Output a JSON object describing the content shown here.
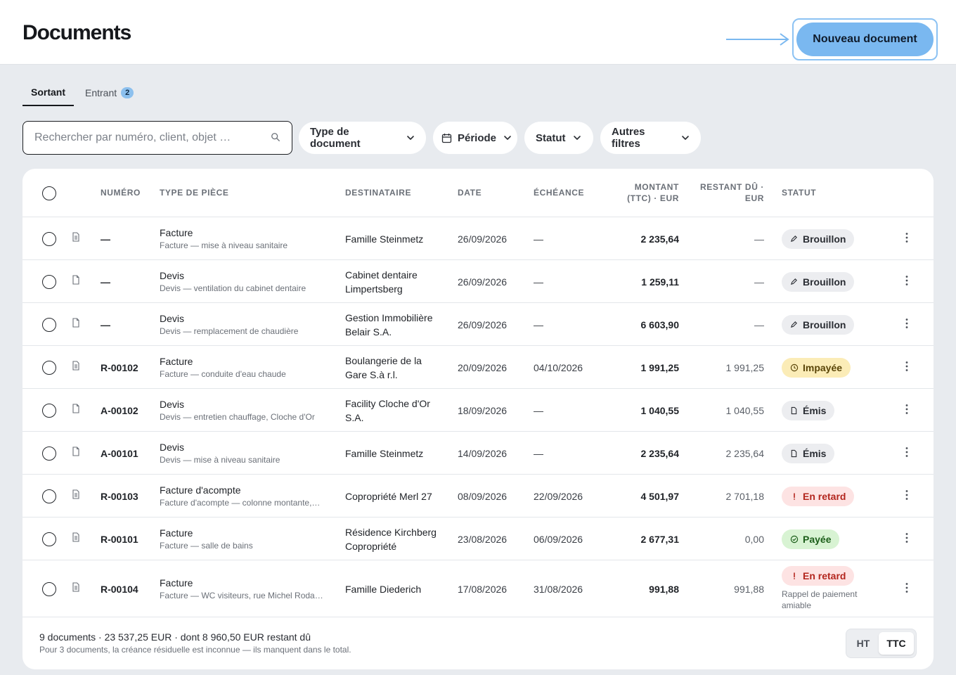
{
  "header": {
    "title": "Documents",
    "new_button": "Nouveau document"
  },
  "tabs": [
    {
      "label": "Sortant",
      "active": true
    },
    {
      "label": "Entrant",
      "badge": "2",
      "active": false
    }
  ],
  "search": {
    "placeholder": "Rechercher par numéro, client, objet …",
    "value": ""
  },
  "filters": {
    "type": "Type de document",
    "period": "Période",
    "status": "Statut",
    "other": "Autres filtres"
  },
  "table": {
    "columns": {
      "number": "NUMÉRO",
      "type": "TYPE DE PIÈCE",
      "recipient": "DESTINATAIRE",
      "date": "DATE",
      "due": "ÉCHÉANCE",
      "amount_l1": "MONTANT",
      "amount_l2": "(TTC) · EUR",
      "rest_l1": "RESTANT DÛ ·",
      "rest_l2": "EUR",
      "status": "STATUT"
    },
    "rows": [
      {
        "icon": "invoice-icon",
        "number": "—",
        "type": "Facture",
        "subject": "Facture — mise à niveau sanitaire",
        "recipient_1": "Famille Steinmetz",
        "recipient_2": "",
        "date": "26/09/2026",
        "due": "—",
        "amount": "2 235,64",
        "rest": "—",
        "status": "Brouillon",
        "status_kind": "draft",
        "status_note": ""
      },
      {
        "icon": "quote-icon",
        "number": "—",
        "type": "Devis",
        "subject": "Devis — ventilation du cabinet dentaire",
        "recipient_1": "Cabinet dentaire",
        "recipient_2": "Limpertsberg",
        "date": "26/09/2026",
        "due": "—",
        "amount": "1 259,11",
        "rest": "—",
        "status": "Brouillon",
        "status_kind": "draft",
        "status_note": ""
      },
      {
        "icon": "quote-icon",
        "number": "—",
        "type": "Devis",
        "subject": "Devis — remplacement de chaudière",
        "recipient_1": "Gestion Immobilière",
        "recipient_2": "Belair S.A.",
        "date": "26/09/2026",
        "due": "—",
        "amount": "6 603,90",
        "rest": "—",
        "status": "Brouillon",
        "status_kind": "draft",
        "status_note": ""
      },
      {
        "icon": "invoice-icon",
        "number": "R-00102",
        "type": "Facture",
        "subject": "Facture — conduite d'eau chaude",
        "recipient_1": "Boulangerie de la",
        "recipient_2": "Gare S.à r.l.",
        "date": "20/09/2026",
        "due": "04/10/2026",
        "amount": "1 991,25",
        "rest": "1 991,25",
        "status": "Impayée",
        "status_kind": "unpaid",
        "status_note": ""
      },
      {
        "icon": "quote-icon",
        "number": "A-00102",
        "type": "Devis",
        "subject": "Devis — entretien chauffage, Cloche d'Or",
        "recipient_1": "Facility Cloche d'Or",
        "recipient_2": "S.A.",
        "date": "18/09/2026",
        "due": "—",
        "amount": "1 040,55",
        "rest": "1 040,55",
        "status": "Émis",
        "status_kind": "issued",
        "status_note": ""
      },
      {
        "icon": "quote-icon",
        "number": "A-00101",
        "type": "Devis",
        "subject": "Devis — mise à niveau sanitaire",
        "recipient_1": "Famille Steinmetz",
        "recipient_2": "",
        "date": "14/09/2026",
        "due": "—",
        "amount": "2 235,64",
        "rest": "2 235,64",
        "status": "Émis",
        "status_kind": "issued",
        "status_note": ""
      },
      {
        "icon": "invoice-icon",
        "number": "R-00103",
        "type": "Facture d'acompte",
        "subject": "Facture d'acompte — colonne montante,…",
        "recipient_1": "Copropriété Merl 27",
        "recipient_2": "",
        "date": "08/09/2026",
        "due": "22/09/2026",
        "amount": "4 501,97",
        "rest": "2 701,18",
        "status": "En retard",
        "status_kind": "late",
        "status_note": ""
      },
      {
        "icon": "invoice-icon",
        "number": "R-00101",
        "type": "Facture",
        "subject": "Facture — salle de bains",
        "recipient_1": "Résidence Kirchberg",
        "recipient_2": "Copropriété",
        "date": "23/08/2026",
        "due": "06/09/2026",
        "amount": "2 677,31",
        "rest": "0,00",
        "status": "Payée",
        "status_kind": "paid",
        "status_note": ""
      },
      {
        "icon": "invoice-icon",
        "number": "R-00104",
        "type": "Facture",
        "subject": "Facture — WC visiteurs, rue Michel Roda…",
        "recipient_1": "Famille Diederich",
        "recipient_2": "",
        "date": "17/08/2026",
        "due": "31/08/2026",
        "amount": "991,88",
        "rest": "991,88",
        "status": "En retard",
        "status_kind": "late",
        "status_note": "Rappel de paiement amiable"
      }
    ]
  },
  "footer": {
    "summary": "9 documents · 23 537,25 EUR · dont 8 960,50 EUR restant dû",
    "note": "Pour 3 documents, la créance résiduelle est inconnue — ils manquent dans le total.",
    "toggle_ht": "HT",
    "toggle_ttc": "TTC",
    "toggle_selected": "TTC"
  },
  "colors": {
    "accent": "#7ab8f0",
    "draft": "#ecedf0",
    "unpaid": "#fbecb7",
    "late": "#fde3e3",
    "paid": "#d8f3d3"
  }
}
